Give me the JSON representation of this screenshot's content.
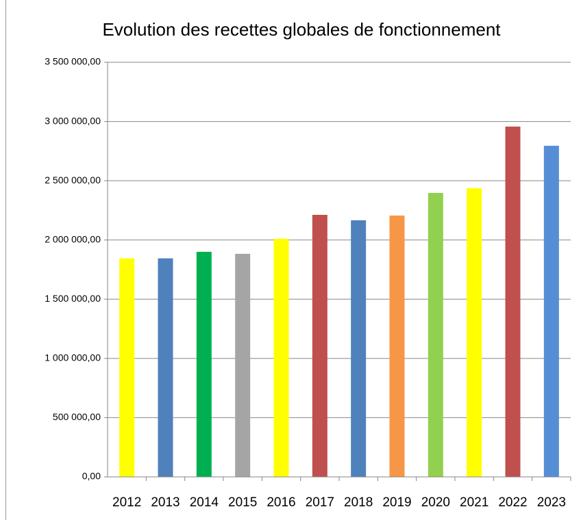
{
  "chart_data": {
    "type": "bar",
    "title": "Evolution des recettes globales de fonctionnement",
    "categories": [
      "2012",
      "2013",
      "2014",
      "2015",
      "2016",
      "2017",
      "2018",
      "2019",
      "2020",
      "2021",
      "2022",
      "2023"
    ],
    "values": [
      1845000,
      1845000,
      1900000,
      1883000,
      2010000,
      2212000,
      2166000,
      2206000,
      2397000,
      2437000,
      2957000,
      2795000
    ],
    "colors": [
      "#ffff00",
      "#4f81bd",
      "#00b050",
      "#a5a5a5",
      "#ffff00",
      "#c0504d",
      "#4f81bd",
      "#f79646",
      "#92d050",
      "#ffff00",
      "#c0504d",
      "#558ed5"
    ],
    "ylim": [
      0,
      3500000
    ],
    "yticks": [
      {
        "value": 0,
        "label": "0,00"
      },
      {
        "value": 500000,
        "label": "500 000,00"
      },
      {
        "value": 1000000,
        "label": "1 000 000,00"
      },
      {
        "value": 1500000,
        "label": "1 500 000,00"
      },
      {
        "value": 2000000,
        "label": "2 000 000,00"
      },
      {
        "value": 2500000,
        "label": "2 500 000,00"
      },
      {
        "value": 3000000,
        "label": "3 000 000,00"
      },
      {
        "value": 3500000,
        "label": "3 500 000,00"
      }
    ],
    "grid": true
  }
}
